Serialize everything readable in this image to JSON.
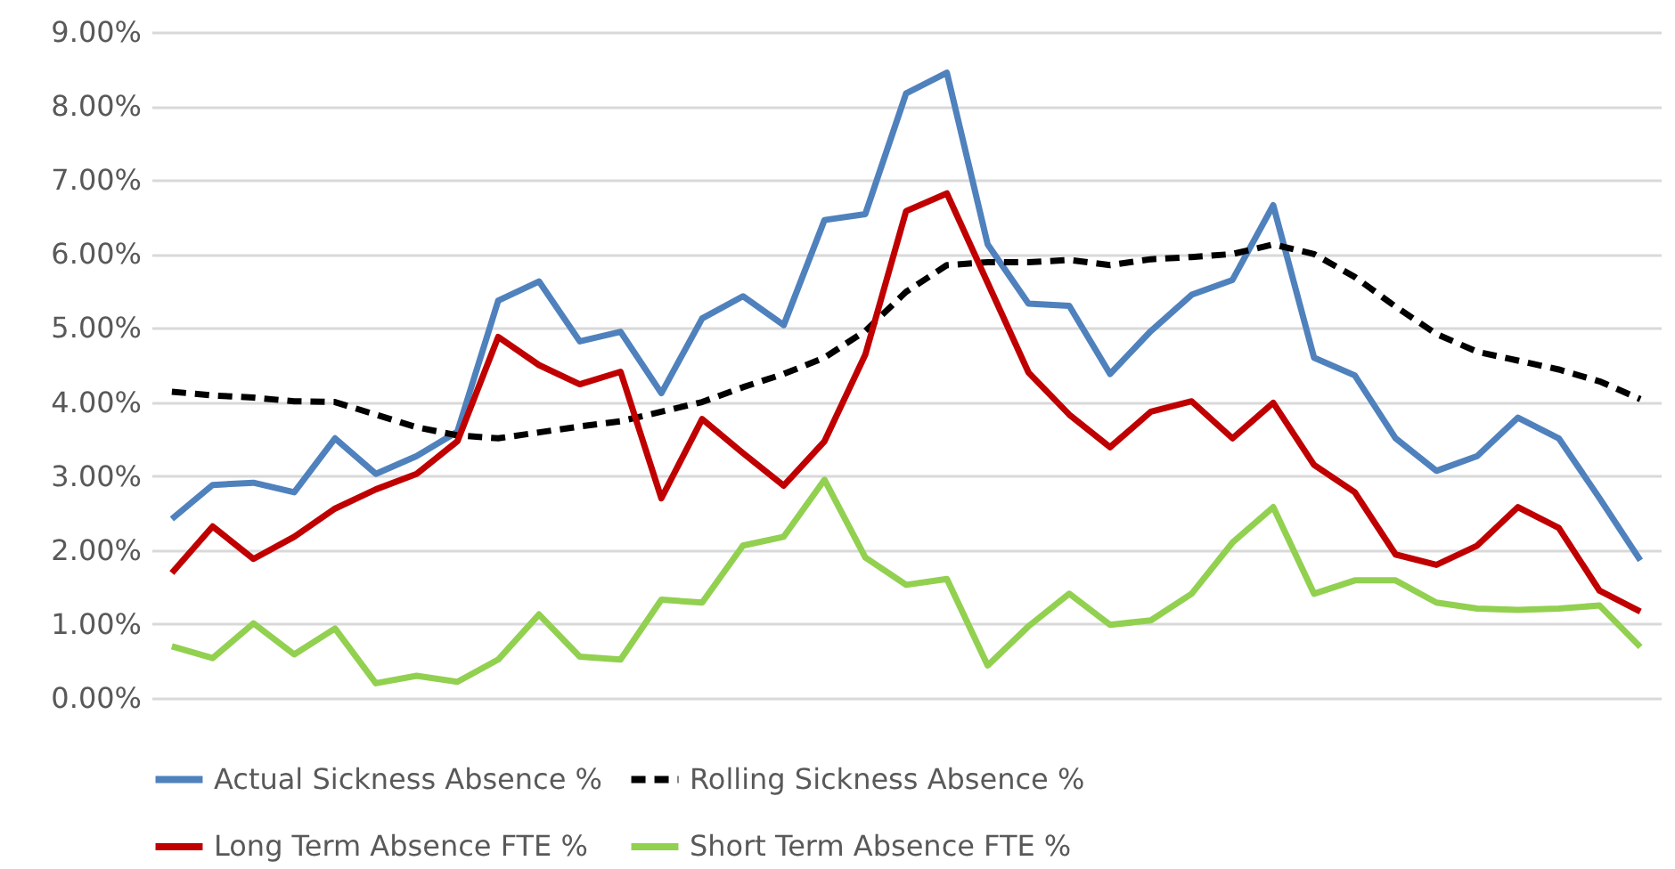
{
  "chart_data": {
    "type": "line",
    "categories": [
      null,
      null,
      null,
      null,
      null,
      null,
      null,
      null,
      null,
      null,
      null,
      null,
      null,
      null,
      null,
      null,
      null,
      null,
      null,
      null,
      null,
      null,
      null,
      null,
      null,
      null,
      null,
      null,
      null,
      null,
      null,
      null,
      null,
      null,
      null,
      null,
      null
    ],
    "series": [
      {
        "name": "Actual Sickness Absence %",
        "color": "#4f81bd",
        "line_style": "solid",
        "values": [
          2.42,
          2.88,
          2.91,
          2.78,
          3.51,
          3.03,
          3.27,
          3.6,
          5.37,
          5.63,
          4.82,
          4.95,
          4.12,
          5.13,
          5.43,
          5.04,
          6.46,
          6.54,
          8.17,
          8.45,
          6.13,
          5.33,
          5.3,
          4.38,
          4.96,
          5.45,
          5.65,
          6.66,
          4.6,
          4.36,
          3.51,
          3.07,
          3.27,
          3.79,
          3.51,
          2.7,
          1.86
        ]
      },
      {
        "name": "Rolling Sickness Absence %",
        "color": "#000000",
        "line_style": "dashed",
        "values": [
          4.14,
          4.09,
          4.06,
          4.01,
          4.0,
          3.83,
          3.66,
          3.55,
          3.51,
          3.59,
          3.67,
          3.74,
          3.87,
          4.0,
          4.2,
          4.38,
          4.6,
          4.96,
          5.49,
          5.85,
          5.89,
          5.89,
          5.92,
          5.85,
          5.93,
          5.96,
          6.0,
          6.13,
          6.0,
          5.69,
          5.29,
          4.92,
          4.68,
          4.56,
          4.44,
          4.28,
          4.04
        ]
      },
      {
        "name": "Long Term Absence FTE %",
        "color": "#c00000",
        "line_style": "solid",
        "values": [
          1.69,
          2.32,
          1.88,
          2.18,
          2.56,
          2.82,
          3.03,
          3.47,
          4.88,
          4.5,
          4.24,
          4.41,
          2.7,
          3.77,
          3.31,
          2.87,
          3.47,
          4.64,
          6.58,
          6.82,
          5.61,
          4.4,
          3.83,
          3.39,
          3.87,
          4.01,
          3.51,
          3.99,
          3.15,
          2.78,
          1.94,
          1.8,
          2.06,
          2.58,
          2.3,
          1.45,
          1.17
        ]
      },
      {
        "name": "Short Term Absence FTE %",
        "color": "#92d050",
        "line_style": "solid",
        "values": [
          0.7,
          0.54,
          1.01,
          0.59,
          0.94,
          0.2,
          0.3,
          0.22,
          0.52,
          1.13,
          0.56,
          0.52,
          1.33,
          1.29,
          2.06,
          2.18,
          2.95,
          1.9,
          1.53,
          1.61,
          0.44,
          0.97,
          1.41,
          0.99,
          1.05,
          1.41,
          2.1,
          2.58,
          1.41,
          1.59,
          1.59,
          1.29,
          1.21,
          1.19,
          1.21,
          1.25,
          0.69
        ]
      }
    ],
    "ylim": [
      0,
      9
    ],
    "yticks": [
      {
        "value": 0,
        "label": "0.00%"
      },
      {
        "value": 1,
        "label": "1.00%"
      },
      {
        "value": 2,
        "label": "2.00%"
      },
      {
        "value": 3,
        "label": "3.00%"
      },
      {
        "value": 4,
        "label": "4.00%"
      },
      {
        "value": 5,
        "label": "5.00%"
      },
      {
        "value": 6,
        "label": "6.00%"
      },
      {
        "value": 7,
        "label": "7.00%"
      },
      {
        "value": 8,
        "label": "8.00%"
      },
      {
        "value": 9,
        "label": "9.00%"
      }
    ],
    "grid": "y",
    "legend": "bottom"
  }
}
